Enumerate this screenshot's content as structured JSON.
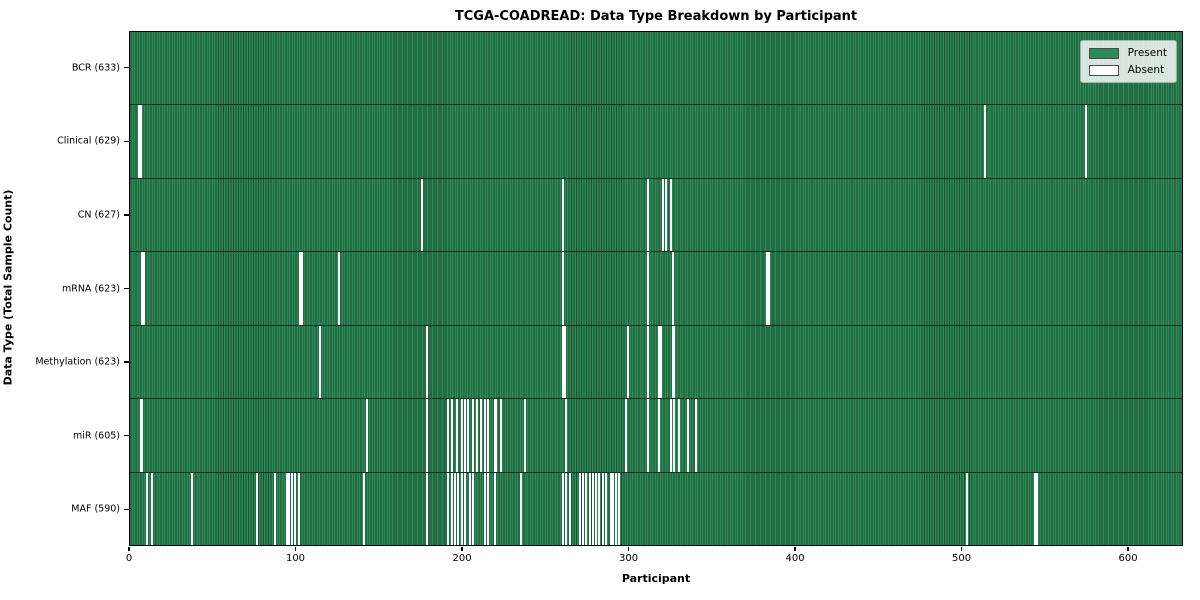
{
  "chart_data": {
    "type": "heatmap",
    "title": "TCGA-COADREAD: Data Type Breakdown by Participant",
    "xlabel": "Participant",
    "ylabel": "Data Type (Total Sample Count)",
    "n_participants": 633,
    "x_ticks": [
      0,
      100,
      200,
      300,
      400,
      500,
      600
    ],
    "xlim": [
      0,
      633
    ],
    "grid": false,
    "legend_position": "upper right",
    "colors": {
      "present": "#2E8B57",
      "cell_edge": "#1b4d30",
      "absent": "#ffffff",
      "row_separator": "#152e1f",
      "legend_bg": "rgba(255,255,255,0.82)"
    },
    "legend": [
      {
        "label": "Present",
        "color": "#2E8B57"
      },
      {
        "label": "Absent",
        "color": "#ffffff"
      }
    ],
    "rows": [
      {
        "label": "BCR (633)",
        "total": 633,
        "absent_count": 0,
        "absent": []
      },
      {
        "label": "Clinical (629)",
        "total": 629,
        "absent_count": 4,
        "absent": [
          5,
          6,
          514,
          575
        ]
      },
      {
        "label": "CN (627)",
        "total": 627,
        "absent_count": 6,
        "absent": [
          175,
          260,
          311,
          320,
          322,
          325
        ]
      },
      {
        "label": "mRNA (623)",
        "total": 623,
        "absent_count": 10,
        "absent": [
          7,
          8,
          102,
          103,
          125,
          260,
          311,
          326,
          383,
          384
        ]
      },
      {
        "label": "Methylation (623)",
        "total": 623,
        "absent_count": 10,
        "absent": [
          114,
          178,
          260,
          261,
          299,
          311,
          318,
          319,
          326,
          327
        ]
      },
      {
        "label": "miR (605)",
        "total": 605,
        "absent_count": 28,
        "absent": [
          6,
          7,
          142,
          178,
          191,
          193,
          196,
          199,
          201,
          203,
          206,
          208,
          211,
          213,
          215,
          219,
          220,
          223,
          237,
          262,
          298,
          311,
          318,
          325,
          327,
          330,
          335,
          340
        ]
      },
      {
        "label": "MAF (590)",
        "total": 590,
        "absent_count": 43,
        "absent": [
          10,
          13,
          37,
          76,
          87,
          94,
          95,
          97,
          99,
          101,
          140,
          178,
          191,
          193,
          195,
          197,
          199,
          201,
          204,
          206,
          213,
          215,
          219,
          235,
          260,
          262,
          264,
          270,
          272,
          274,
          276,
          278,
          280,
          282,
          284,
          286,
          289,
          290,
          292,
          294,
          503,
          544,
          545
        ]
      }
    ]
  }
}
